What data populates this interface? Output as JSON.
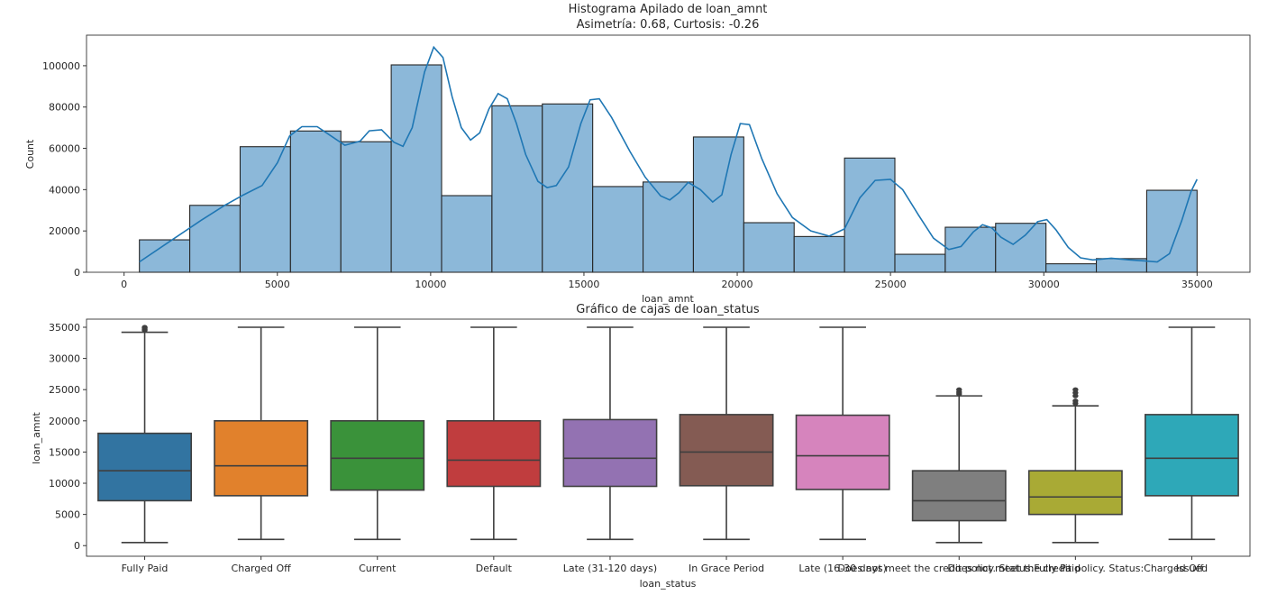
{
  "chart_data": [
    {
      "type": "bar",
      "subtype": "histogram_with_kde",
      "title": "Histograma Apilado de loan_amnt",
      "subtitle": "Asimetría: 0.68, Curtosis: -0.26",
      "xlabel": "loan_amnt",
      "ylabel": "Count",
      "xlim": [
        -1225,
        36725
      ],
      "ylim": [
        0,
        114800
      ],
      "xticks": [
        0,
        5000,
        10000,
        15000,
        20000,
        25000,
        30000,
        35000
      ],
      "xtick_labels": [
        "0",
        "5000",
        "10000",
        "15000",
        "20000",
        "25000",
        "30000",
        "35000"
      ],
      "yticks": [
        0,
        20000,
        40000,
        60000,
        80000,
        100000
      ],
      "ytick_labels": [
        "0",
        "20000",
        "40000",
        "60000",
        "80000",
        "100000"
      ],
      "bin_range": [
        500,
        35000
      ],
      "counts": [
        15700,
        32400,
        60800,
        68400,
        63200,
        100400,
        37100,
        80600,
        81500,
        41500,
        43700,
        65500,
        24000,
        17300,
        55300,
        8700,
        21800,
        23700,
        4100,
        6600,
        39700
      ],
      "kde": {
        "x": [
          500,
          1500,
          2500,
          3300,
          3900,
          4500,
          5000,
          5400,
          5800,
          6300,
          6800,
          7200,
          7700,
          8000,
          8400,
          8800,
          9100,
          9400,
          9800,
          10100,
          10400,
          10700,
          11000,
          11300,
          11600,
          11900,
          12200,
          12500,
          12800,
          13100,
          13500,
          13800,
          14100,
          14500,
          14900,
          15200,
          15500,
          15900,
          16500,
          17000,
          17500,
          17800,
          18100,
          18400,
          18800,
          19200,
          19500,
          19800,
          20100,
          20400,
          20800,
          21300,
          21800,
          22400,
          23000,
          23500,
          24000,
          24500,
          25000,
          25400,
          25900,
          26400,
          26900,
          27300,
          27700,
          28000,
          28300,
          28600,
          29000,
          29400,
          29800,
          30100,
          30400,
          30800,
          31200,
          31600,
          32200,
          32800,
          33300,
          33700,
          34100,
          34500,
          34800,
          35000
        ],
        "y": [
          5000,
          15000,
          25000,
          32500,
          37500,
          42000,
          53000,
          66000,
          70500,
          70500,
          65500,
          61500,
          63500,
          68500,
          69000,
          63000,
          61000,
          70000,
          97000,
          109000,
          104000,
          85000,
          70000,
          64000,
          67500,
          79000,
          86500,
          84000,
          72000,
          57000,
          44000,
          41000,
          42000,
          51000,
          72000,
          83500,
          84000,
          75000,
          58500,
          46000,
          37000,
          35000,
          38500,
          43500,
          40000,
          34000,
          37500,
          57000,
          72000,
          71500,
          55000,
          38000,
          26500,
          20000,
          17500,
          21000,
          36000,
          44500,
          45000,
          40000,
          28000,
          16500,
          11000,
          12500,
          19500,
          23000,
          21500,
          17000,
          13500,
          18000,
          24500,
          25500,
          20500,
          12000,
          7000,
          6000,
          6800,
          6000,
          5500,
          5000,
          9000,
          25000,
          39000,
          45000
        ]
      },
      "bar_color": "#8cb8d9",
      "kde_color": "#1f77b4"
    },
    {
      "type": "boxplot",
      "title": "Gráfico de cajas de loan_status",
      "xlabel": "loan_status",
      "ylabel": "loan_amnt",
      "ylim": [
        -1700,
        36300
      ],
      "yticks": [
        0,
        5000,
        10000,
        15000,
        20000,
        25000,
        30000,
        35000
      ],
      "ytick_labels": [
        "0",
        "5000",
        "10000",
        "15000",
        "20000",
        "25000",
        "30000",
        "35000"
      ],
      "categories": [
        "Fully Paid",
        "Charged Off",
        "Current",
        "Default",
        "Late (31-120 days)",
        "In Grace Period",
        "Late (16-30 days)",
        "Does not meet the credit policy. Status:Fully Paid",
        "Does not meet the credit policy. Status:Charged Off",
        "Issued"
      ],
      "boxes": [
        {
          "whislo": 500,
          "q1": 7200,
          "med": 12000,
          "q3": 18000,
          "whishi": 34200,
          "fliers": [
            34500,
            34700,
            34900,
            35000
          ],
          "color": "#3274a1"
        },
        {
          "whislo": 1000,
          "q1": 8000,
          "med": 12800,
          "q3": 20000,
          "whishi": 35000,
          "fliers": [],
          "color": "#e1812c"
        },
        {
          "whislo": 1000,
          "q1": 8900,
          "med": 14000,
          "q3": 20000,
          "whishi": 35000,
          "fliers": [],
          "color": "#3a923a"
        },
        {
          "whislo": 1000,
          "q1": 9500,
          "med": 13700,
          "q3": 20000,
          "whishi": 35000,
          "fliers": [],
          "color": "#c03d3e"
        },
        {
          "whislo": 1000,
          "q1": 9500,
          "med": 14000,
          "q3": 20200,
          "whishi": 35000,
          "fliers": [],
          "color": "#9372b2"
        },
        {
          "whislo": 1000,
          "q1": 9600,
          "med": 15000,
          "q3": 21000,
          "whishi": 35000,
          "fliers": [],
          "color": "#845b53"
        },
        {
          "whislo": 1000,
          "q1": 9000,
          "med": 14400,
          "q3": 20900,
          "whishi": 35000,
          "fliers": [],
          "color": "#d684bd"
        },
        {
          "whislo": 500,
          "q1": 4000,
          "med": 7200,
          "q3": 12000,
          "whishi": 24000,
          "fliers": [
            24300,
            24600,
            25000
          ],
          "color": "#7f7f7f"
        },
        {
          "whislo": 500,
          "q1": 5000,
          "med": 7800,
          "q3": 12000,
          "whishi": 22400,
          "fliers": [
            22800,
            23200,
            24000,
            24500,
            25000
          ],
          "color": "#a9aa35"
        },
        {
          "whislo": 1000,
          "q1": 8000,
          "med": 14000,
          "q3": 21000,
          "whishi": 35000,
          "fliers": [],
          "color": "#2ea8b8"
        }
      ]
    }
  ]
}
